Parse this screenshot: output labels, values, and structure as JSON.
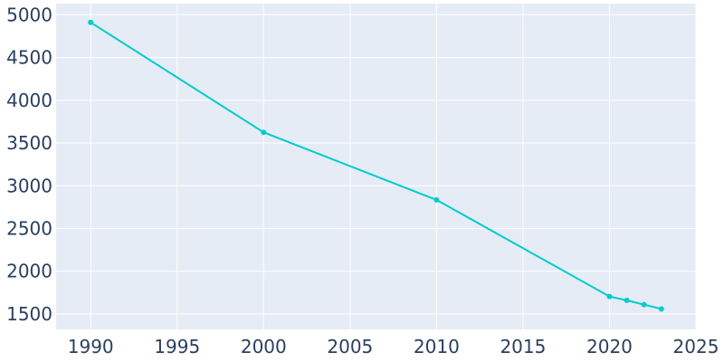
{
  "chart_data": {
    "type": "line",
    "title": "",
    "xlabel": "",
    "ylabel": "",
    "xlim": [
      1988,
      2025
    ],
    "ylim": [
      1320,
      5130
    ],
    "x_ticks": [
      1990,
      1995,
      2000,
      2005,
      2010,
      2015,
      2020,
      2025
    ],
    "y_ticks": [
      1500,
      2000,
      2500,
      3000,
      3500,
      4000,
      4500,
      5000
    ],
    "grid": true,
    "legend": "none",
    "series": [
      {
        "x": [
          1990,
          2000,
          2010,
          2020,
          2021,
          2022,
          2023
        ],
        "values": [
          4910,
          3625,
          2835,
          1705,
          1660,
          1610,
          1560
        ]
      }
    ],
    "colors": {
      "line": "#00cccc",
      "plot_background": "#e5ecf6",
      "grid": "#ffffff",
      "text": "#2a3f5f"
    }
  }
}
